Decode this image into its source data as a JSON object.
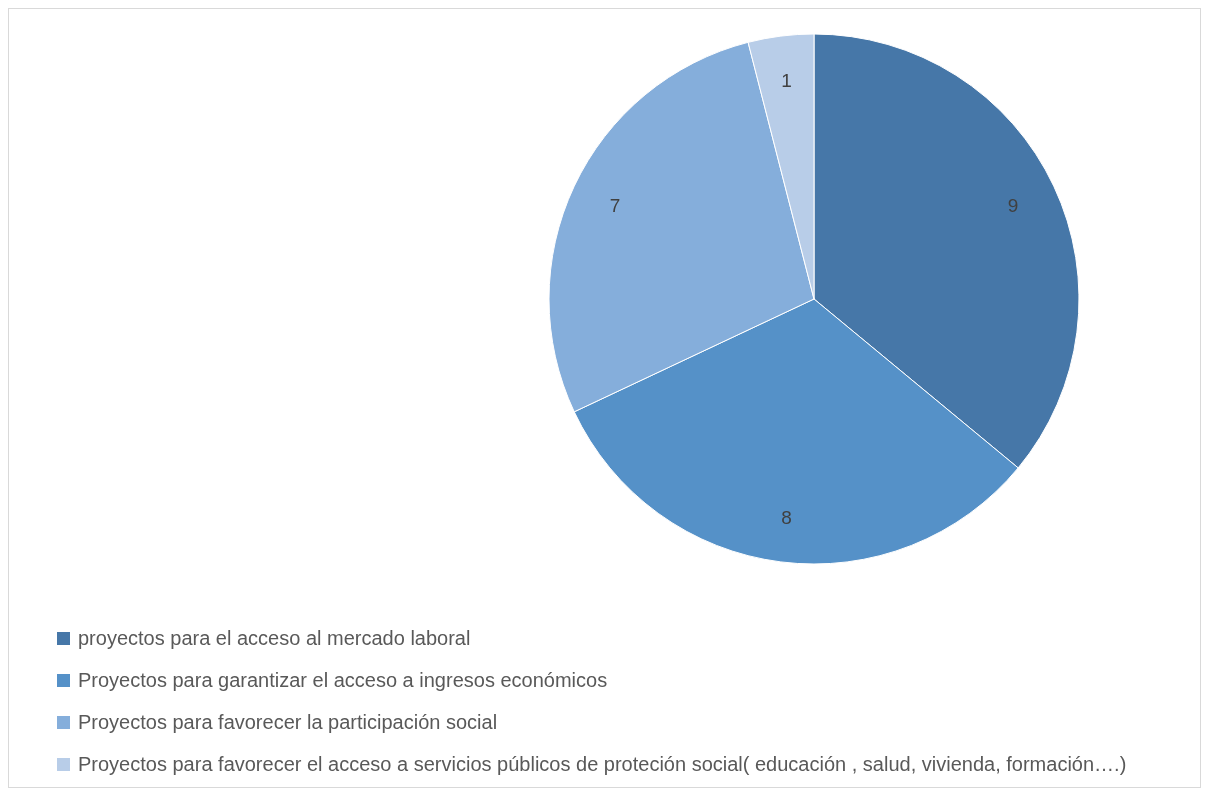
{
  "chart_data": {
    "type": "pie",
    "categories": [
      "proyectos para el acceso al mercado laboral",
      "Proyectos para garantizar el acceso a ingresos económicos",
      "Proyectos para favorecer la participación social",
      "Proyectos para favorecer el acceso a servicios públicos de proteción social( educación , salud, vivienda, formación….)"
    ],
    "values": [
      9,
      8,
      7,
      1
    ],
    "colors": [
      "#4677a8",
      "#5591c8",
      "#85aedb",
      "#b8cde8"
    ],
    "data_labels": true,
    "legend": "bottom left"
  }
}
